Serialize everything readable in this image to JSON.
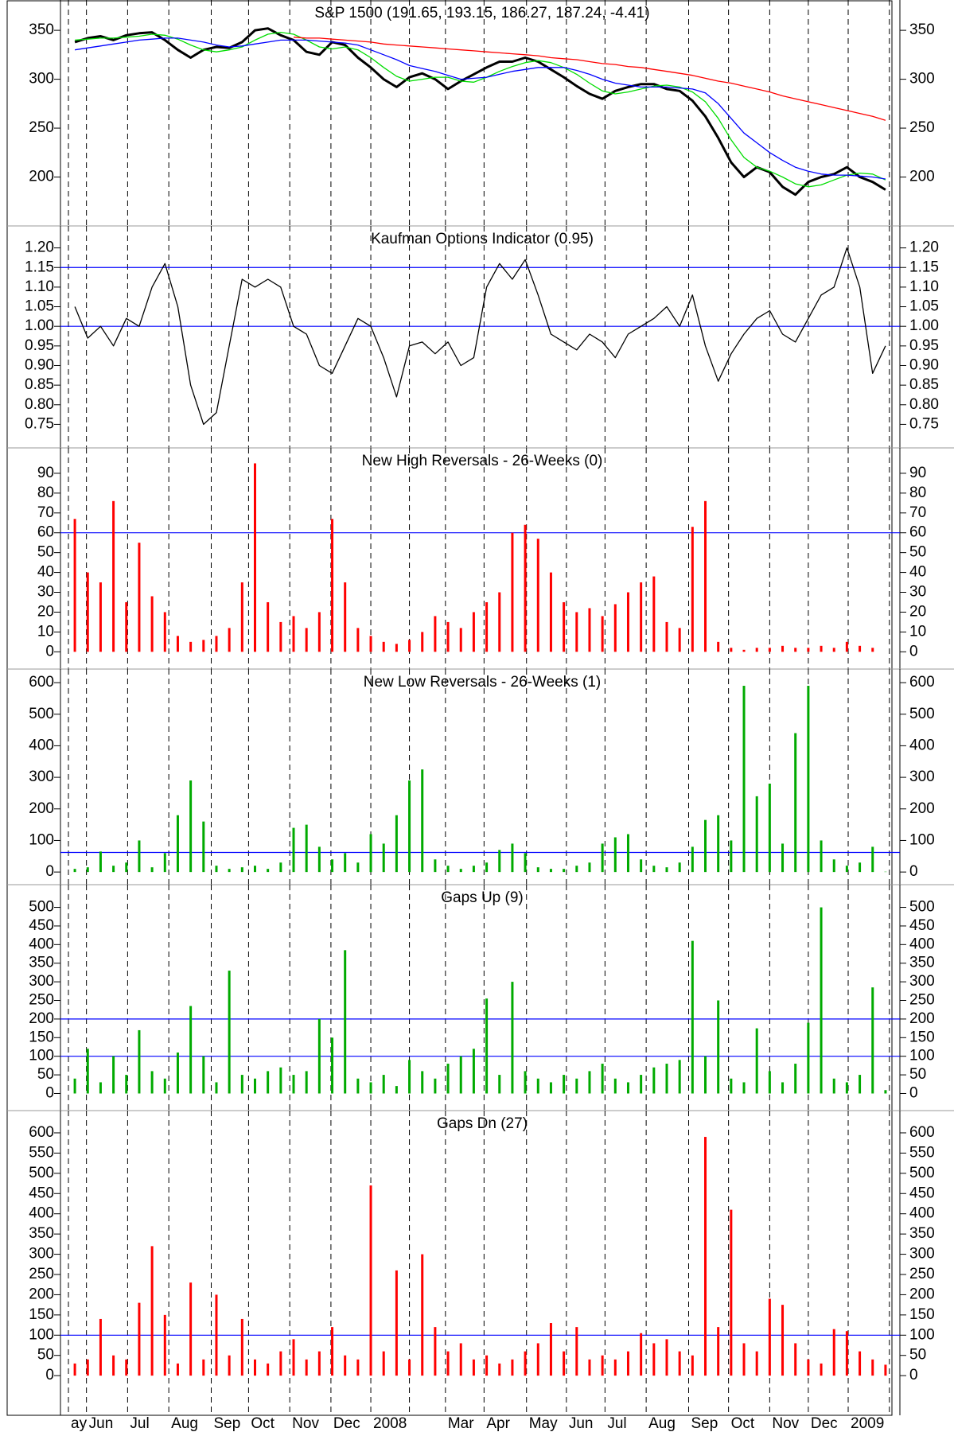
{
  "chart_data": [
    {
      "type": "line",
      "title": "S&P 1500 (191.65, 193.15, 186.27, 187.24, -4.41)",
      "ylim": [
        150,
        381
      ],
      "yticks": [
        200,
        250,
        300,
        350
      ],
      "series": [
        {
          "color": "#000000",
          "width": 3,
          "values": [
            338,
            342,
            344,
            340,
            345,
            347,
            348,
            340,
            330,
            322,
            330,
            333,
            332,
            338,
            350,
            352,
            345,
            340,
            328,
            325,
            338,
            335,
            322,
            312,
            300,
            292,
            302,
            306,
            300,
            290,
            298,
            305,
            312,
            318,
            318,
            322,
            318,
            310,
            302,
            293,
            285,
            280,
            288,
            292,
            295,
            295,
            290,
            288,
            278,
            262,
            240,
            215,
            200,
            210,
            205,
            190,
            182,
            195,
            200,
            203,
            210,
            200,
            195,
            187
          ]
        },
        {
          "color": "#00dd00",
          "width": 1.3,
          "values": [
            340,
            341,
            342,
            342,
            343,
            344,
            346,
            345,
            341,
            335,
            330,
            328,
            330,
            333,
            340,
            346,
            348,
            346,
            340,
            333,
            331,
            333,
            330,
            322,
            312,
            303,
            298,
            300,
            302,
            302,
            298,
            297,
            302,
            308,
            313,
            317,
            319,
            317,
            312,
            305,
            296,
            288,
            285,
            287,
            290,
            293,
            294,
            292,
            287,
            277,
            260,
            238,
            220,
            210,
            206,
            200,
            193,
            190,
            192,
            197,
            202,
            204,
            203,
            197
          ]
        },
        {
          "color": "#0000ff",
          "width": 1.3,
          "values": [
            330,
            332,
            334,
            336,
            338,
            340,
            341,
            342,
            342,
            340,
            338,
            335,
            333,
            334,
            336,
            338,
            340,
            340,
            340,
            339,
            338,
            337,
            335,
            330,
            325,
            320,
            314,
            311,
            308,
            304,
            300,
            301,
            302,
            305,
            308,
            310,
            312,
            312,
            312,
            309,
            305,
            300,
            296,
            294,
            292,
            292,
            292,
            291,
            290,
            286,
            275,
            260,
            245,
            235,
            225,
            217,
            210,
            206,
            203,
            202,
            202,
            201,
            200,
            198
          ]
        },
        {
          "color": "#ff0000",
          "width": 1.3,
          "values": [
            null,
            null,
            null,
            null,
            null,
            null,
            null,
            null,
            null,
            null,
            null,
            null,
            null,
            null,
            null,
            null,
            null,
            343,
            342,
            342,
            341,
            340,
            339,
            338,
            336,
            335,
            334,
            333,
            332,
            331,
            330,
            329,
            328,
            327,
            326,
            325,
            324,
            322,
            321,
            320,
            318,
            316,
            315,
            313,
            312,
            310,
            308,
            306,
            304,
            301,
            298,
            296,
            293,
            290,
            287,
            283,
            280,
            277,
            274,
            271,
            268,
            265,
            262,
            258
          ]
        }
      ]
    },
    {
      "type": "line",
      "title": "Kaufman Options Indicator (0.95)",
      "color": "#000000",
      "ylim": [
        0.69,
        1.256
      ],
      "yticks": [
        0.75,
        {
          "value": 0.8,
          "label": "0.80"
        },
        0.85,
        {
          "value": 0.9,
          "label": "0.90"
        },
        0.95,
        {
          "value": 1.0,
          "label": "1.00"
        },
        1.05,
        {
          "value": 1.1,
          "label": "1.10"
        },
        1.15,
        {
          "value": 1.2,
          "label": "1.20"
        }
      ],
      "hlines": [
        {
          "value": 1.15,
          "color": "#0000ff"
        },
        {
          "value": 1.0,
          "color": "#0000ff"
        }
      ],
      "values": [
        1.05,
        0.97,
        1.0,
        0.95,
        1.02,
        1.0,
        1.1,
        1.16,
        1.05,
        0.85,
        0.75,
        0.78,
        0.95,
        1.12,
        1.1,
        1.12,
        1.1,
        1.0,
        0.98,
        0.9,
        0.88,
        0.95,
        1.02,
        1.0,
        0.92,
        0.82,
        0.95,
        0.96,
        0.93,
        0.96,
        0.9,
        0.92,
        1.1,
        1.16,
        1.12,
        1.17,
        1.08,
        0.98,
        0.96,
        0.94,
        0.98,
        0.96,
        0.92,
        0.98,
        1.0,
        1.02,
        1.05,
        1.0,
        1.08,
        0.95,
        0.86,
        0.93,
        0.98,
        1.02,
        1.04,
        0.98,
        0.96,
        1.02,
        1.08,
        1.1,
        1.2,
        1.1,
        0.88,
        0.95
      ]
    },
    {
      "type": "bar",
      "title": "New High Reversals - 26-Weeks (0)",
      "color": "#ff0000",
      "ylim": [
        -8.7,
        102.8
      ],
      "yticks": [
        0,
        10,
        20,
        30,
        40,
        50,
        60,
        70,
        80,
        90
      ],
      "hlines": [
        {
          "value": 60,
          "color": "#0000ff"
        }
      ],
      "values": [
        67,
        40,
        35,
        76,
        25,
        55,
        28,
        20,
        8,
        5,
        6,
        8,
        12,
        35,
        95,
        25,
        15,
        18,
        12,
        20,
        67,
        35,
        12,
        8,
        5,
        4,
        6,
        10,
        18,
        15,
        12,
        20,
        25,
        30,
        60,
        64,
        57,
        40,
        25,
        20,
        22,
        18,
        24,
        30,
        35,
        38,
        15,
        12,
        63,
        76,
        5,
        2,
        1,
        2,
        2,
        3,
        2,
        2,
        3,
        2,
        5,
        3,
        2,
        0
      ]
    },
    {
      "type": "bar",
      "title": "New Low Reversals - 26-Weeks (1)",
      "color": "#00aa00",
      "ylim": [
        -40,
        643
      ],
      "yticks": [
        0,
        100,
        200,
        300,
        400,
        500,
        600
      ],
      "hlines": [
        {
          "value": 62,
          "color": "#0000ff"
        }
      ],
      "values": [
        10,
        15,
        65,
        20,
        30,
        100,
        15,
        60,
        180,
        290,
        160,
        20,
        10,
        15,
        20,
        10,
        30,
        140,
        150,
        80,
        40,
        60,
        30,
        120,
        90,
        180,
        290,
        325,
        40,
        20,
        10,
        20,
        30,
        70,
        90,
        60,
        15,
        10,
        10,
        20,
        30,
        90,
        110,
        120,
        40,
        20,
        15,
        30,
        80,
        165,
        180,
        100,
        590,
        240,
        280,
        90,
        440,
        590,
        100,
        40,
        20,
        30,
        80,
        1
      ]
    },
    {
      "type": "bar",
      "title": "Gaps Up (9)",
      "color": "#00aa00",
      "ylim": [
        -46,
        561
      ],
      "yticks": [
        0,
        50,
        100,
        150,
        200,
        250,
        300,
        350,
        400,
        450,
        500
      ],
      "hlines": [
        {
          "value": 200,
          "color": "#0000ff"
        },
        {
          "value": 100,
          "color": "#0000ff"
        }
      ],
      "values": [
        40,
        120,
        30,
        100,
        50,
        170,
        60,
        40,
        110,
        235,
        100,
        30,
        330,
        50,
        40,
        60,
        70,
        50,
        60,
        200,
        150,
        385,
        40,
        30,
        50,
        20,
        90,
        60,
        40,
        80,
        100,
        120,
        255,
        50,
        300,
        60,
        40,
        30,
        50,
        40,
        60,
        80,
        40,
        30,
        50,
        70,
        80,
        90,
        410,
        100,
        250,
        40,
        30,
        175,
        60,
        30,
        80,
        190,
        500,
        40,
        30,
        50,
        285,
        9
      ]
    },
    {
      "type": "bar",
      "title": "Gaps Dn (27)",
      "color": "#ff0000",
      "ylim": [
        -98,
        655
      ],
      "yticks": [
        0,
        50,
        100,
        150,
        200,
        250,
        300,
        350,
        400,
        450,
        500,
        550,
        600
      ],
      "hlines": [
        {
          "value": 100,
          "color": "#0000ff"
        }
      ],
      "values": [
        30,
        40,
        140,
        50,
        40,
        180,
        320,
        150,
        30,
        230,
        40,
        200,
        50,
        140,
        40,
        30,
        60,
        90,
        40,
        60,
        120,
        50,
        40,
        470,
        60,
        260,
        40,
        300,
        120,
        60,
        80,
        40,
        50,
        30,
        40,
        60,
        80,
        130,
        60,
        120,
        40,
        50,
        40,
        60,
        105,
        80,
        90,
        60,
        50,
        590,
        120,
        410,
        80,
        60,
        190,
        175,
        80,
        40,
        30,
        115,
        110,
        60,
        40,
        27
      ],
      "xlim": [
        0,
        64
      ],
      "xticks": [
        {
          "value": 0,
          "label": "ay"
        },
        {
          "value": 1.4,
          "label": "Jun"
        },
        {
          "value": 4.6,
          "label": "Jul"
        },
        {
          "value": 7.8,
          "label": "Aug"
        },
        {
          "value": 11.1,
          "label": "Sep"
        },
        {
          "value": 14.0,
          "label": "Oct"
        },
        {
          "value": 17.2,
          "label": "Nov"
        },
        {
          "value": 20.4,
          "label": "Dec"
        },
        {
          "value": 23.5,
          "label": "2008"
        },
        {
          "value": 26.5,
          "label": null
        },
        {
          "value": 29.3,
          "label": "Mar"
        },
        {
          "value": 32.3,
          "label": "Apr"
        },
        {
          "value": 35.6,
          "label": "May"
        },
        {
          "value": 38.7,
          "label": "Jun"
        },
        {
          "value": 41.7,
          "label": "Jul"
        },
        {
          "value": 44.9,
          "label": "Aug"
        },
        {
          "value": 48.2,
          "label": "Sep"
        },
        {
          "value": 51.3,
          "label": "Oct"
        },
        {
          "value": 54.5,
          "label": "Nov"
        },
        {
          "value": 57.5,
          "label": "Dec"
        },
        {
          "value": 60.6,
          "label": "2009"
        },
        {
          "value": 63.8,
          "label": null
        }
      ]
    }
  ]
}
